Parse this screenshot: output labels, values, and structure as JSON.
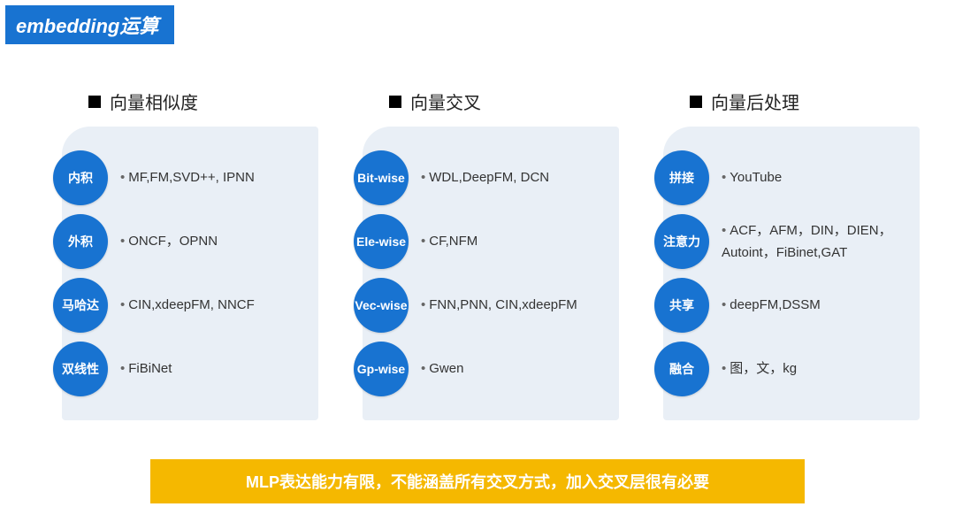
{
  "title": "embedding运算",
  "title_bg": "#1873d1",
  "panel_bg": "#e9eff6",
  "circle_bg": "#1873d1",
  "text_color": "#333333",
  "footer_bg": "#f5b800",
  "footer_text": "MLP表达能力有限，不能涵盖所有交叉方式，加入交叉层很有必要",
  "columns": [
    {
      "header": "向量相似度",
      "rows": [
        {
          "label": "内积",
          "desc": "MF,FM,SVD++, IPNN"
        },
        {
          "label": "外积",
          "desc": "ONCF，OPNN"
        },
        {
          "label": "马哈达",
          "desc": "CIN,xdeepFM, NNCF"
        },
        {
          "label": "双线性",
          "desc": "FiBiNet"
        }
      ]
    },
    {
      "header": "向量交叉",
      "rows": [
        {
          "label": "Bit-wise",
          "desc": "WDL,DeepFM, DCN"
        },
        {
          "label": "Ele-wise",
          "desc": "CF,NFM"
        },
        {
          "label": "Vec-wise",
          "desc": "FNN,PNN, CIN,xdeepFM"
        },
        {
          "label": "Gp-wise",
          "desc": "Gwen"
        }
      ]
    },
    {
      "header": "向量后处理",
      "rows": [
        {
          "label": "拼接",
          "desc": "YouTube"
        },
        {
          "label": "注意力",
          "desc": "ACF，AFM，DIN，DIEN，Autoint，FiBinet,GAT"
        },
        {
          "label": "共享",
          "desc": "deepFM,DSSM"
        },
        {
          "label": "融合",
          "desc": "图，文，kg"
        }
      ]
    }
  ]
}
